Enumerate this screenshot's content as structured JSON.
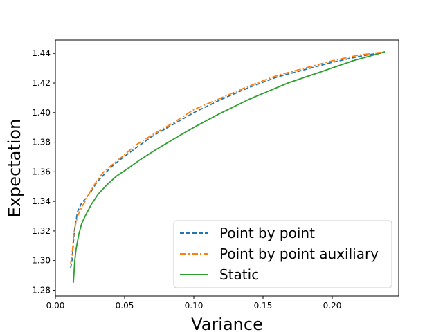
{
  "chart_data": {
    "type": "line",
    "title": "",
    "xlabel": "Variance",
    "ylabel": "Expectation",
    "xlim": [
      0.0,
      0.248
    ],
    "ylim": [
      1.276,
      1.449
    ],
    "x_ticks": [
      "0.00",
      "0.05",
      "0.10",
      "0.15",
      "0.20"
    ],
    "x_tick_values": [
      0.0,
      0.05,
      0.1,
      0.15,
      0.2
    ],
    "y_ticks": [
      "1.28",
      "1.30",
      "1.32",
      "1.34",
      "1.36",
      "1.38",
      "1.40",
      "1.42",
      "1.44"
    ],
    "y_tick_values": [
      1.28,
      1.3,
      1.32,
      1.34,
      1.36,
      1.38,
      1.4,
      1.42,
      1.44
    ],
    "grid": false,
    "legend_position": "bottom-right",
    "series": [
      {
        "name": "Point by point",
        "color": "#1f77b4",
        "style": "dashed",
        "x": [
          0.011,
          0.012,
          0.013,
          0.014,
          0.016,
          0.019,
          0.022,
          0.026,
          0.03,
          0.035,
          0.04,
          0.048,
          0.058,
          0.07,
          0.085,
          0.1,
          0.12,
          0.14,
          0.16,
          0.18,
          0.2,
          0.22,
          0.238
        ],
        "y": [
          1.295,
          1.3,
          1.312,
          1.322,
          1.333,
          1.339,
          1.342,
          1.347,
          1.353,
          1.358,
          1.363,
          1.369,
          1.376,
          1.384,
          1.392,
          1.4,
          1.409,
          1.417,
          1.424,
          1.429,
          1.434,
          1.438,
          1.441
        ]
      },
      {
        "name": "Point by point auxiliary",
        "color": "#ff7f0e",
        "style": "dashdot",
        "x": [
          0.011,
          0.012,
          0.013,
          0.014,
          0.016,
          0.019,
          0.022,
          0.026,
          0.03,
          0.035,
          0.04,
          0.048,
          0.058,
          0.07,
          0.085,
          0.1,
          0.12,
          0.14,
          0.16,
          0.18,
          0.2,
          0.22,
          0.238
        ],
        "y": [
          1.298,
          1.303,
          1.315,
          1.322,
          1.33,
          1.336,
          1.341,
          1.348,
          1.354,
          1.36,
          1.364,
          1.37,
          1.378,
          1.385,
          1.393,
          1.402,
          1.41,
          1.418,
          1.425,
          1.43,
          1.435,
          1.439,
          1.441
        ]
      },
      {
        "name": "Static",
        "color": "#2ca02c",
        "style": "solid",
        "x": [
          0.013,
          0.014,
          0.015,
          0.017,
          0.019,
          0.022,
          0.026,
          0.031,
          0.037,
          0.044,
          0.052,
          0.061,
          0.071,
          0.087,
          0.1,
          0.118,
          0.14,
          0.168,
          0.19,
          0.215,
          0.238
        ],
        "y": [
          1.285,
          1.3,
          1.308,
          1.318,
          1.325,
          1.331,
          1.338,
          1.345,
          1.351,
          1.357,
          1.362,
          1.368,
          1.374,
          1.383,
          1.39,
          1.399,
          1.409,
          1.42,
          1.427,
          1.435,
          1.441
        ]
      }
    ]
  }
}
